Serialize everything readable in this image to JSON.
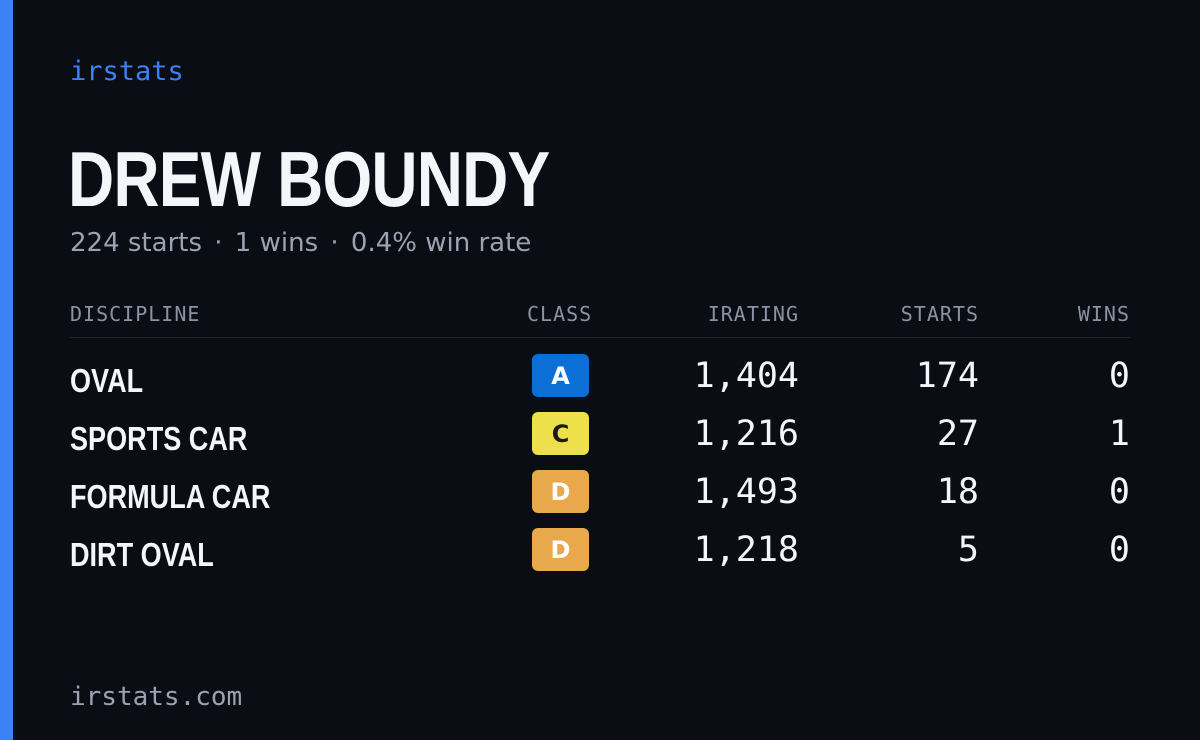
{
  "brand": "irstats",
  "player": {
    "name": "DREW BOUNDY",
    "starts_text": "224 starts",
    "wins_text": "1 wins",
    "win_rate_text": "0.4% win rate",
    "separator": "·"
  },
  "table": {
    "headers": {
      "discipline": "DISCIPLINE",
      "class": "CLASS",
      "irating": "IRATING",
      "starts": "STARTS",
      "wins": "WINS"
    },
    "rows": [
      {
        "discipline": "OVAL",
        "class": "A",
        "class_bg": "#0b6fd6",
        "class_fg": "#ffffff",
        "irating": "1,404",
        "starts": "174",
        "wins": "0"
      },
      {
        "discipline": "SPORTS CAR",
        "class": "C",
        "class_bg": "#eee04a",
        "class_fg": "#1a1a1a",
        "irating": "1,216",
        "starts": "27",
        "wins": "1"
      },
      {
        "discipline": "FORMULA CAR",
        "class": "D",
        "class_bg": "#e8a84c",
        "class_fg": "#ffffff",
        "irating": "1,493",
        "starts": "18",
        "wins": "0"
      },
      {
        "discipline": "DIRT OVAL",
        "class": "D",
        "class_bg": "#e8a84c",
        "class_fg": "#ffffff",
        "irating": "1,218",
        "starts": "5",
        "wins": "0"
      }
    ]
  },
  "footer": "irstats.com",
  "colors": {
    "accent": "#3b82f6",
    "background": "#0a0d14"
  }
}
